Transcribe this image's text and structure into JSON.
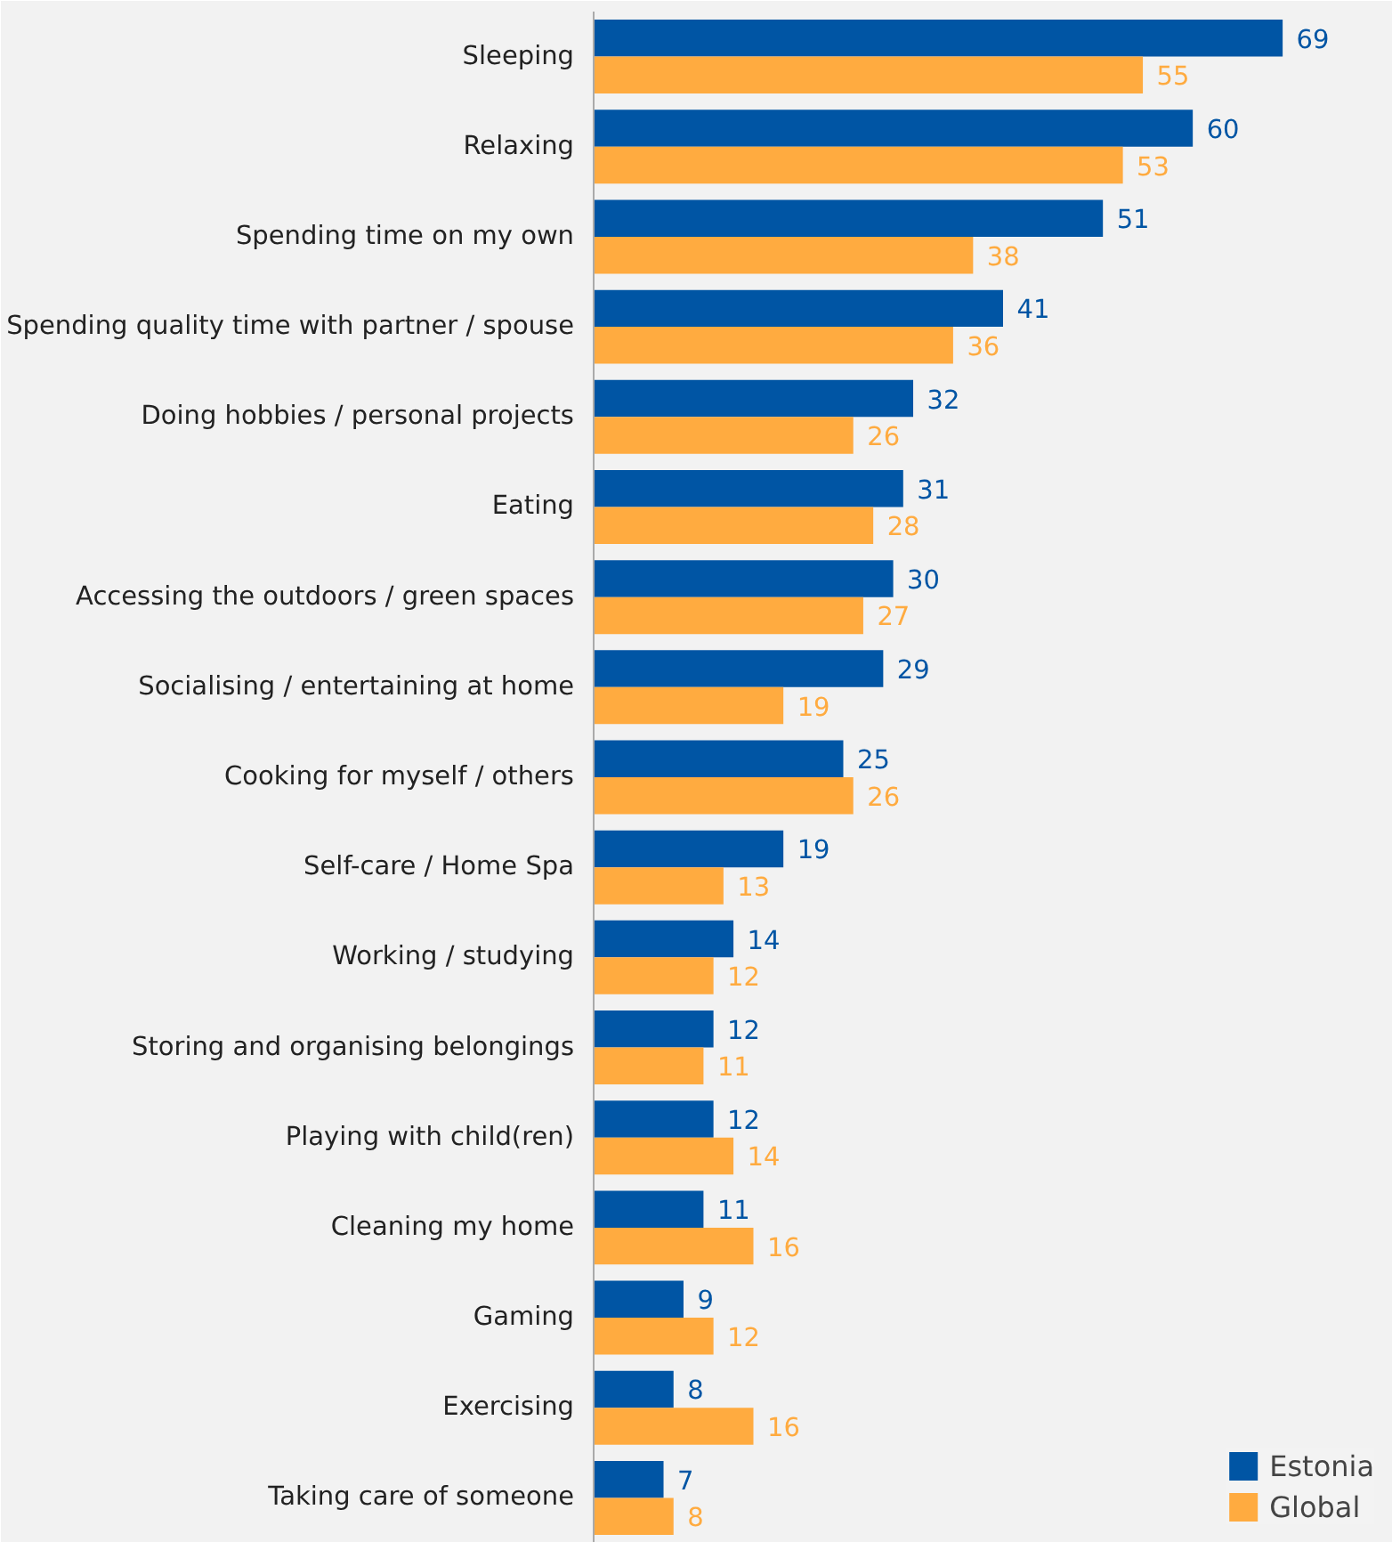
{
  "chart_data": {
    "type": "bar",
    "orientation": "horizontal",
    "data_labels": true,
    "legend": "bottom right",
    "grid": false,
    "categories": [
      "Sleeping",
      "Relaxing",
      "Spending time on my own",
      "Spending quality time with partner / spouse",
      "Doing hobbies / personal projects",
      "Eating",
      "Accessing the outdoors / green spaces",
      "Socialising / entertaining at home",
      "Cooking for myself / others",
      "Self-care / Home Spa",
      "Working / studying",
      "Storing and organising belongings",
      "Playing with child(ren)",
      "Cleaning my home",
      "Gaming",
      "Exercising",
      "Taking care of someone"
    ],
    "series": [
      {
        "name": "Estonia",
        "color": "#0055a4",
        "values": [
          69,
          60,
          51,
          41,
          32,
          31,
          30,
          29,
          25,
          19,
          14,
          12,
          12,
          11,
          9,
          8,
          7
        ]
      },
      {
        "name": "Global",
        "color": "#ffab40",
        "values": [
          55,
          53,
          38,
          36,
          26,
          28,
          27,
          19,
          26,
          13,
          12,
          11,
          14,
          16,
          12,
          16,
          8
        ]
      }
    ]
  }
}
